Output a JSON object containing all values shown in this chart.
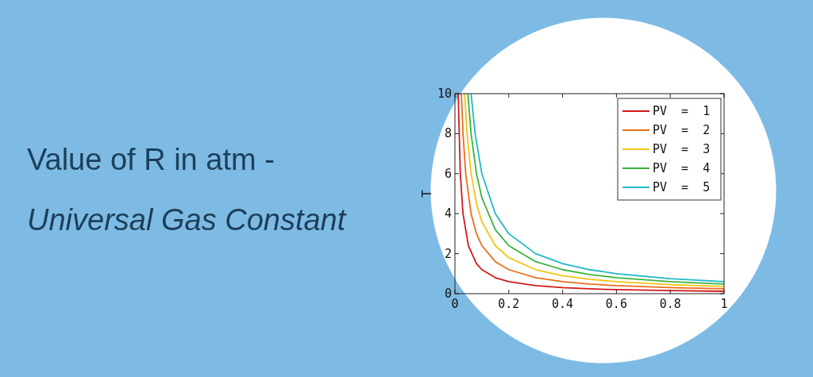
{
  "chart_data": {
    "type": "line",
    "title": "Value of R in atm -",
    "subtitle": "Universal Gas Constant",
    "ylabel": "T",
    "xlim": [
      0,
      1
    ],
    "ylim": [
      0,
      10
    ],
    "xticks": [
      0,
      0.2,
      0.4,
      0.6,
      0.8,
      1
    ],
    "yticks": [
      0,
      2,
      4,
      6,
      8,
      10
    ],
    "legend": "top right",
    "grid": false,
    "marker": "none",
    "line_style": "solid",
    "series": [
      {
        "name": "PV  =  1",
        "color": "#d11a1a",
        "x": [
          0.012,
          0.02,
          0.03,
          0.05,
          0.08,
          0.1,
          0.15,
          0.2,
          0.3,
          0.4,
          0.5,
          0.6,
          0.8,
          1
        ],
        "values": [
          10,
          6,
          4,
          2.4,
          1.5,
          1.2,
          0.8,
          0.6,
          0.4,
          0.3,
          0.24,
          0.2,
          0.15,
          0.12
        ]
      },
      {
        "name": "PV  =  2",
        "color": "#e8701a",
        "x": [
          0.024,
          0.03,
          0.04,
          0.06,
          0.08,
          0.1,
          0.15,
          0.2,
          0.3,
          0.4,
          0.5,
          0.6,
          0.8,
          1
        ],
        "values": [
          10,
          8,
          6,
          4,
          3,
          2.4,
          1.6,
          1.2,
          0.8,
          0.6,
          0.48,
          0.4,
          0.3,
          0.24
        ]
      },
      {
        "name": "PV  =  3",
        "color": "#f2c514",
        "x": [
          0.036,
          0.045,
          0.06,
          0.08,
          0.1,
          0.15,
          0.2,
          0.3,
          0.4,
          0.5,
          0.6,
          0.8,
          1
        ],
        "values": [
          10,
          8,
          6,
          4.5,
          3.6,
          2.4,
          1.8,
          1.2,
          0.9,
          0.72,
          0.6,
          0.45,
          0.36
        ]
      },
      {
        "name": "PV  =  4",
        "color": "#3cb33c",
        "x": [
          0.048,
          0.06,
          0.08,
          0.1,
          0.15,
          0.2,
          0.3,
          0.4,
          0.5,
          0.6,
          0.8,
          1
        ],
        "values": [
          10,
          8,
          6,
          4.8,
          3.2,
          2.4,
          1.6,
          1.2,
          0.96,
          0.8,
          0.6,
          0.48
        ]
      },
      {
        "name": "PV  =  5",
        "color": "#1fb8c8",
        "x": [
          0.06,
          0.075,
          0.1,
          0.15,
          0.2,
          0.3,
          0.4,
          0.5,
          0.6,
          0.8,
          1
        ],
        "values": [
          10,
          8,
          6,
          4,
          3,
          2,
          1.5,
          1.2,
          1,
          0.75,
          0.6
        ]
      }
    ]
  }
}
